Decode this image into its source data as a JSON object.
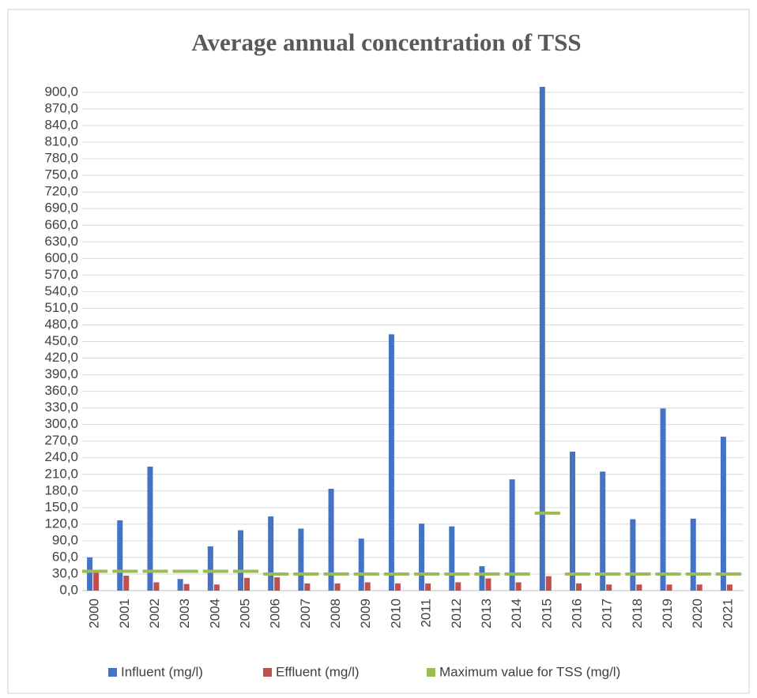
{
  "chart_data": {
    "type": "bar",
    "title": "Average annual concentration of TSS",
    "categories": [
      "2000",
      "2001",
      "2002",
      "2003",
      "2004",
      "2005",
      "2006",
      "2007",
      "2008",
      "2009",
      "2010",
      "2011",
      "2012",
      "2013",
      "2014",
      "2015",
      "2016",
      "2017",
      "2018",
      "2019",
      "2020",
      "2021"
    ],
    "series": [
      {
        "name": "Influent (mg/l)",
        "color": "#4472c4",
        "type": "bar",
        "values": [
          60,
          127,
          224,
          21,
          80,
          109,
          134,
          112,
          184,
          94,
          463,
          121,
          116,
          44,
          201,
          910,
          251,
          215,
          129,
          329,
          130,
          278
        ]
      },
      {
        "name": "Effluent (mg/l)",
        "color": "#c0504d",
        "type": "bar",
        "values": [
          35,
          27,
          15,
          12,
          11,
          23,
          24,
          13,
          13,
          15,
          13,
          13,
          15,
          22,
          15,
          26,
          13,
          11,
          11,
          11,
          11,
          11
        ]
      },
      {
        "name": "Maximum value for TSS (mg/l)",
        "color": "#9bbb59",
        "type": "line",
        "values": [
          35,
          35,
          35,
          35,
          35,
          35,
          30,
          30,
          30,
          30,
          30,
          30,
          30,
          30,
          30,
          140,
          30,
          30,
          30,
          30,
          30,
          30
        ]
      }
    ],
    "ylim": [
      0,
      900
    ],
    "yticks": [
      {
        "value": 0,
        "label": "0,0"
      },
      {
        "value": 30,
        "label": "30,0"
      },
      {
        "value": 60,
        "label": "60,0"
      },
      {
        "value": 90,
        "label": "90,0"
      },
      {
        "value": 120,
        "label": "120,0"
      },
      {
        "value": 150,
        "label": "150,0"
      },
      {
        "value": 180,
        "label": "180,0"
      },
      {
        "value": 210,
        "label": "210,0"
      },
      {
        "value": 240,
        "label": "240,0"
      },
      {
        "value": 270,
        "label": "270,0"
      },
      {
        "value": 300,
        "label": "300,0"
      },
      {
        "value": 330,
        "label": "330,0"
      },
      {
        "value": 360,
        "label": "360,0"
      },
      {
        "value": 390,
        "label": "390,0"
      },
      {
        "value": 420,
        "label": "420,0"
      },
      {
        "value": 450,
        "label": "450,0"
      },
      {
        "value": 480,
        "label": "480,0"
      },
      {
        "value": 510,
        "label": "510,0"
      },
      {
        "value": 540,
        "label": "540,0"
      },
      {
        "value": 570,
        "label": "570,0"
      },
      {
        "value": 600,
        "label": "600,0"
      },
      {
        "value": 630,
        "label": "630,0"
      },
      {
        "value": 660,
        "label": "660,0"
      },
      {
        "value": 690,
        "label": "690,0"
      },
      {
        "value": 720,
        "label": "720,0"
      },
      {
        "value": 750,
        "label": "750,0"
      },
      {
        "value": 780,
        "label": "780,0"
      },
      {
        "value": 810,
        "label": "810,0"
      },
      {
        "value": 840,
        "label": "840,0"
      },
      {
        "value": 870,
        "label": "870,0"
      },
      {
        "value": 900,
        "label": "900,0"
      }
    ],
    "grid": true
  }
}
